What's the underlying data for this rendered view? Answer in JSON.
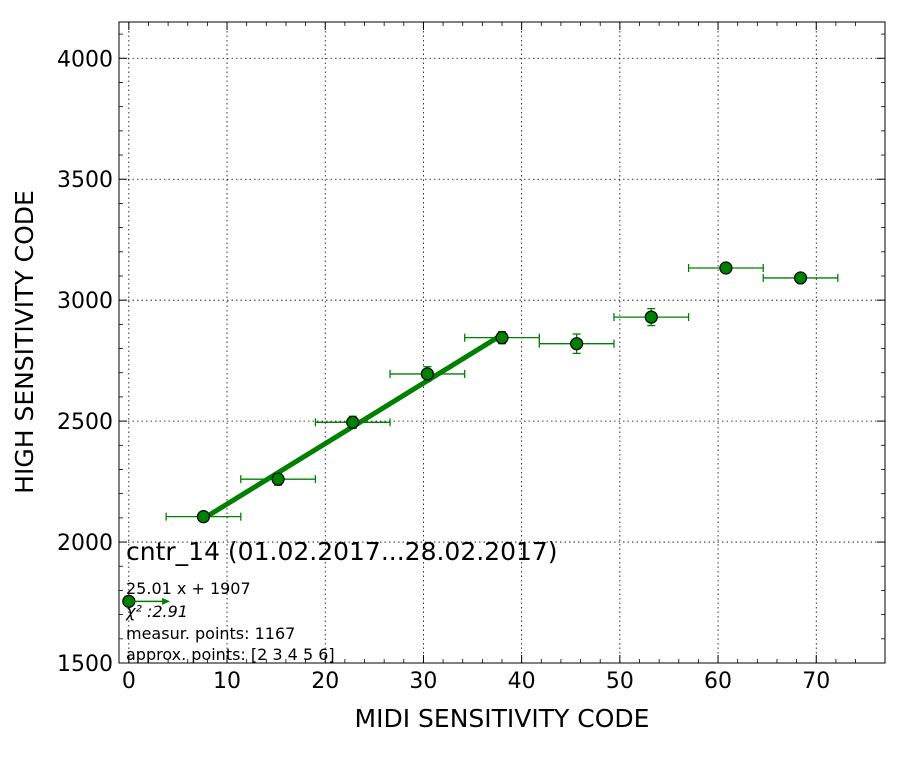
{
  "chart_data": {
    "type": "scatter",
    "title": "",
    "xlabel": "MIDI SENSITIVITY CODE",
    "ylabel": "HIGH SENSITIVITY CODE",
    "xlim": [
      -1,
      77
    ],
    "ylim": [
      1500,
      4150
    ],
    "xticks": [
      0,
      10,
      20,
      30,
      40,
      50,
      60,
      70
    ],
    "yticks": [
      1500,
      2000,
      2500,
      3000,
      3500,
      4000
    ],
    "grid": true,
    "colors": {
      "series": "#008000",
      "marker_edge": "#000000",
      "fit": "#008000"
    },
    "series": [
      {
        "points": [
          {
            "x": 0.0,
            "y": 1755,
            "xerr": 0.0,
            "yerr": 0
          },
          {
            "x": 7.6,
            "y": 2105,
            "xerr": 3.8,
            "yerr": 12
          },
          {
            "x": 15.2,
            "y": 2260,
            "xerr": 3.8,
            "yerr": 25
          },
          {
            "x": 22.8,
            "y": 2495,
            "xerr": 3.8,
            "yerr": 25
          },
          {
            "x": 30.4,
            "y": 2695,
            "xerr": 3.8,
            "yerr": 30
          },
          {
            "x": 38.0,
            "y": 2845,
            "xerr": 3.8,
            "yerr": 25
          },
          {
            "x": 45.6,
            "y": 2820,
            "xerr": 3.8,
            "yerr": 40
          },
          {
            "x": 53.2,
            "y": 2930,
            "xerr": 3.8,
            "yerr": 35
          },
          {
            "x": 60.8,
            "y": 3133,
            "xerr": 3.8,
            "yerr": 12
          },
          {
            "x": 68.4,
            "y": 3092,
            "xerr": 3.8,
            "yerr": 10
          }
        ]
      }
    ],
    "fit_line": {
      "x": [
        7.6,
        38.0
      ],
      "y": [
        2097,
        2857
      ]
    },
    "arrow": {
      "x_from": 0.0,
      "x_to": 4.2,
      "y": 1755
    },
    "annotations": {
      "title": "cntr_14 (01.02.2017...28.02.2017)",
      "fit_equation": "25.01 x + 1907",
      "chi2": "χ² :2.91",
      "measur_points": "measur. points: 1167",
      "approx_points": "approx. points: [2 3 4 5 6]"
    }
  }
}
